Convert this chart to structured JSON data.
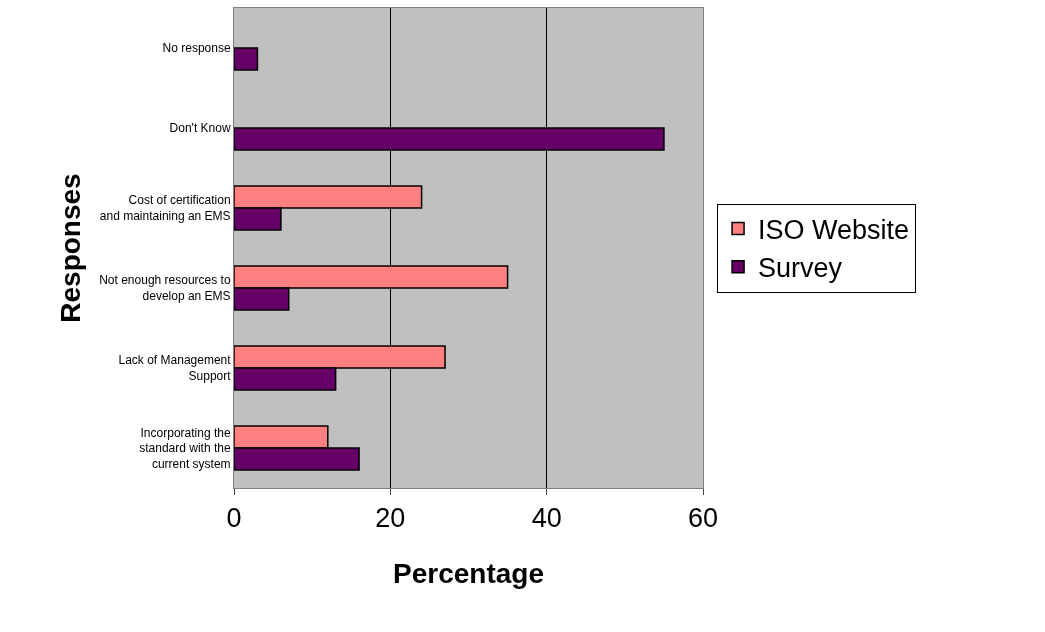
{
  "chart_data": {
    "type": "bar",
    "orientation": "horizontal",
    "xlabel": "Percentage",
    "ylabel": "Responses",
    "categories": [
      "No response",
      "Don't Know",
      "Cost of certification and maintaining an EMS",
      "Not enough resources to develop an EMS",
      "Lack of Management Support",
      "Incorporating the standard with the current system"
    ],
    "series": [
      {
        "name": "ISO Website",
        "color": "#ff8080",
        "values": [
          null,
          null,
          24,
          35,
          27,
          12
        ]
      },
      {
        "name": "Survey",
        "color": "#660066",
        "values": [
          3,
          55,
          6,
          7,
          13,
          16
        ]
      }
    ],
    "xlim": [
      0,
      60
    ],
    "xticks": [
      0,
      20,
      40,
      60
    ],
    "grid": "x",
    "legend": "right"
  }
}
